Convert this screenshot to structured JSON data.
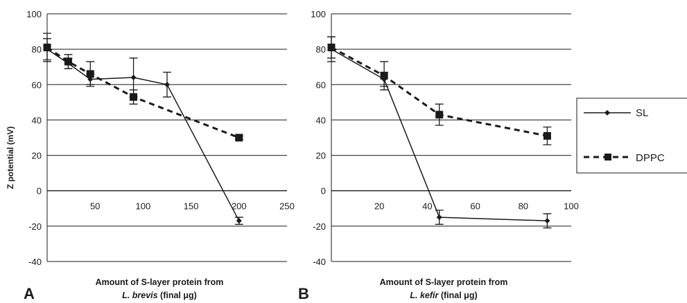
{
  "chart_data": [
    {
      "type": "line",
      "panel_label": "A",
      "ylabel": "Z potential (mV)",
      "xlabel_line1": "Amount of S-layer protein from",
      "xlabel_line2_species": "L. brevis",
      "xlabel_line2_rest": " (final μg)",
      "xlim": [
        0,
        250
      ],
      "ylim": [
        -40,
        100
      ],
      "xticks": [
        50,
        100,
        150,
        200,
        250
      ],
      "xtick_labels": [
        "50",
        "100",
        "150",
        "200",
        "250"
      ],
      "yticks": [
        -40,
        -20,
        0,
        20,
        40,
        60,
        80,
        100
      ],
      "ytick_labels": [
        "-40",
        "-20",
        "0",
        "20",
        "40",
        "60",
        "80",
        "100"
      ],
      "grid": true,
      "series": [
        {
          "name": "SL",
          "x": [
            0,
            22,
            45,
            90,
            125,
            200
          ],
          "y": [
            80,
            72,
            63,
            64,
            60,
            -17
          ],
          "err": [
            6,
            3,
            3,
            11,
            7,
            2
          ]
        },
        {
          "name": "DPPC",
          "x": [
            0,
            22,
            45,
            90,
            200
          ],
          "y": [
            81,
            73,
            66,
            53,
            30
          ],
          "err": [
            8,
            4,
            7,
            4,
            1
          ]
        }
      ]
    },
    {
      "type": "line",
      "panel_label": "B",
      "xlabel_line1": "Amount of S-layer protein from",
      "xlabel_line2_species": "L. kefir",
      "xlabel_line2_rest": " (final μg)",
      "xlim": [
        0,
        100
      ],
      "ylim": [
        -40,
        100
      ],
      "xticks": [
        20,
        40,
        60,
        80,
        100
      ],
      "xtick_labels": [
        "20",
        "40",
        "60",
        "80",
        "100"
      ],
      "yticks": [
        -40,
        -20,
        0,
        20,
        40,
        60,
        80,
        100
      ],
      "ytick_labels": [
        "-40",
        "-20",
        "0",
        "20",
        "40",
        "60",
        "80",
        "100"
      ],
      "grid": true,
      "series": [
        {
          "name": "SL",
          "x": [
            0,
            22,
            45,
            90
          ],
          "y": [
            80,
            63,
            -15,
            -17
          ],
          "err": [
            7,
            4,
            4,
            4
          ]
        },
        {
          "name": "DPPC",
          "x": [
            0,
            22,
            45,
            90
          ],
          "y": [
            81,
            65,
            43,
            31
          ],
          "err": [
            6,
            8,
            6,
            5
          ]
        }
      ]
    }
  ],
  "legend": {
    "placement": "right",
    "entries": [
      {
        "label": "SL",
        "style": "solid-diamond"
      },
      {
        "label": "DPPC",
        "style": "dashed-square"
      }
    ]
  }
}
